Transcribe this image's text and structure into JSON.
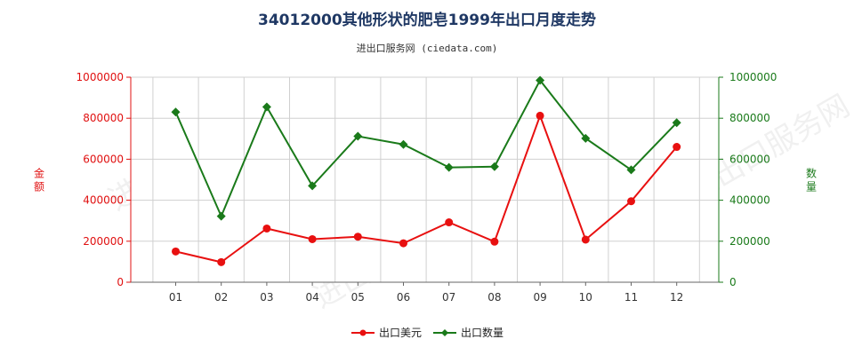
{
  "chart_data": {
    "type": "line",
    "title": "34012000其他形状的肥皂1999年出口月度走势",
    "subtitle": "进出口服务网 (ciedata.com)",
    "categories": [
      "01",
      "02",
      "03",
      "04",
      "05",
      "06",
      "07",
      "08",
      "09",
      "10",
      "11",
      "12"
    ],
    "y_left": {
      "label": "金额",
      "ylim": [
        0,
        1000000
      ],
      "ticks": [
        "0",
        "200000",
        "400000",
        "600000",
        "800000",
        "1000000"
      ],
      "color": "#e01010"
    },
    "y_right": {
      "label": "数量",
      "ylim": [
        0,
        1000000
      ],
      "ticks": [
        "0",
        "200000",
        "400000",
        "600000",
        "800000",
        "1000000"
      ],
      "color": "#1a7a1a"
    },
    "series": [
      {
        "name": "出口美元",
        "axis": "left",
        "color": "#e81010",
        "values": [
          150000,
          98000,
          262000,
          210000,
          222000,
          190000,
          292000,
          198000,
          812000,
          208000,
          395000,
          660000
        ]
      },
      {
        "name": "出口数量",
        "axis": "right",
        "color": "#1a7a1a",
        "values": [
          830000,
          322000,
          855000,
          470000,
          712000,
          672000,
          560000,
          564000,
          985000,
          702000,
          548000,
          778000
        ]
      }
    ],
    "grid": true,
    "legend_position": "bottom"
  },
  "watermark_text": "进出口服务网"
}
